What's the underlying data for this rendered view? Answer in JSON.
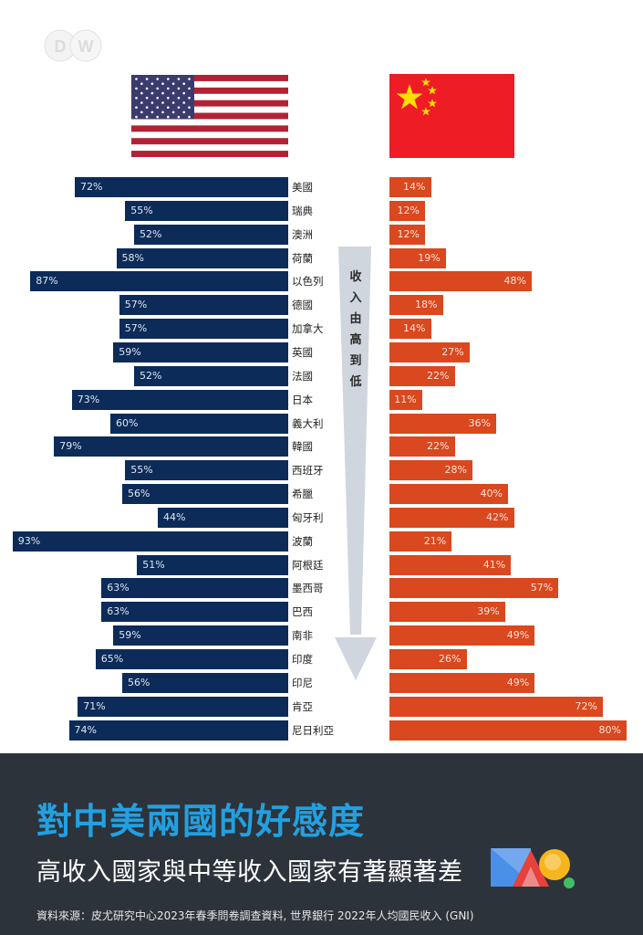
{
  "logo": {
    "text": "DW"
  },
  "flags": {
    "left": "United States flag",
    "right": "China flag"
  },
  "arrow_label": "收\n入\n由\n高\n到\n低",
  "colors": {
    "us_bar": "#0c2b59",
    "cn_bar": "#d9481e",
    "footer_bg": "#2d333b",
    "title": "#23a0e0",
    "arrow": "#cfd6de"
  },
  "footer": {
    "title": "對中美兩國的好感度",
    "subtitle": "高收入國家與中等收入國家有著顯著差",
    "source": "資料來源：皮尤研究中心2023年春季問卷調查資料, 世界銀行 2022年人均國民收入 (GNI)"
  },
  "chart_data": {
    "type": "bar",
    "title": "對中美兩國的好感度",
    "subtitle": "高收入國家與中等收入國家有著顯著差",
    "xlabel": "",
    "ylabel": "",
    "annotation": "收入由高到低",
    "orientation": "horizontal-diverging",
    "xlim": [
      0,
      100
    ],
    "categories": [
      "美國",
      "瑞典",
      "澳洲",
      "荷蘭",
      "以色列",
      "德國",
      "加拿大",
      "英國",
      "法國",
      "日本",
      "義大利",
      "韓國",
      "西班牙",
      "希臘",
      "匈牙利",
      "波蘭",
      "阿根廷",
      "墨西哥",
      "巴西",
      "南非",
      "印度",
      "印尼",
      "肯亞",
      "尼日利亞"
    ],
    "series": [
      {
        "name": "美國",
        "side": "left",
        "values": [
          72,
          55,
          52,
          58,
          87,
          57,
          57,
          59,
          52,
          73,
          60,
          79,
          55,
          56,
          44,
          93,
          51,
          63,
          63,
          59,
          65,
          56,
          71,
          74
        ]
      },
      {
        "name": "中國",
        "side": "right",
        "values": [
          14,
          12,
          12,
          19,
          48,
          18,
          14,
          27,
          22,
          11,
          36,
          22,
          28,
          40,
          42,
          21,
          41,
          57,
          39,
          49,
          26,
          49,
          72,
          80
        ]
      }
    ],
    "value_suffix": "%"
  }
}
